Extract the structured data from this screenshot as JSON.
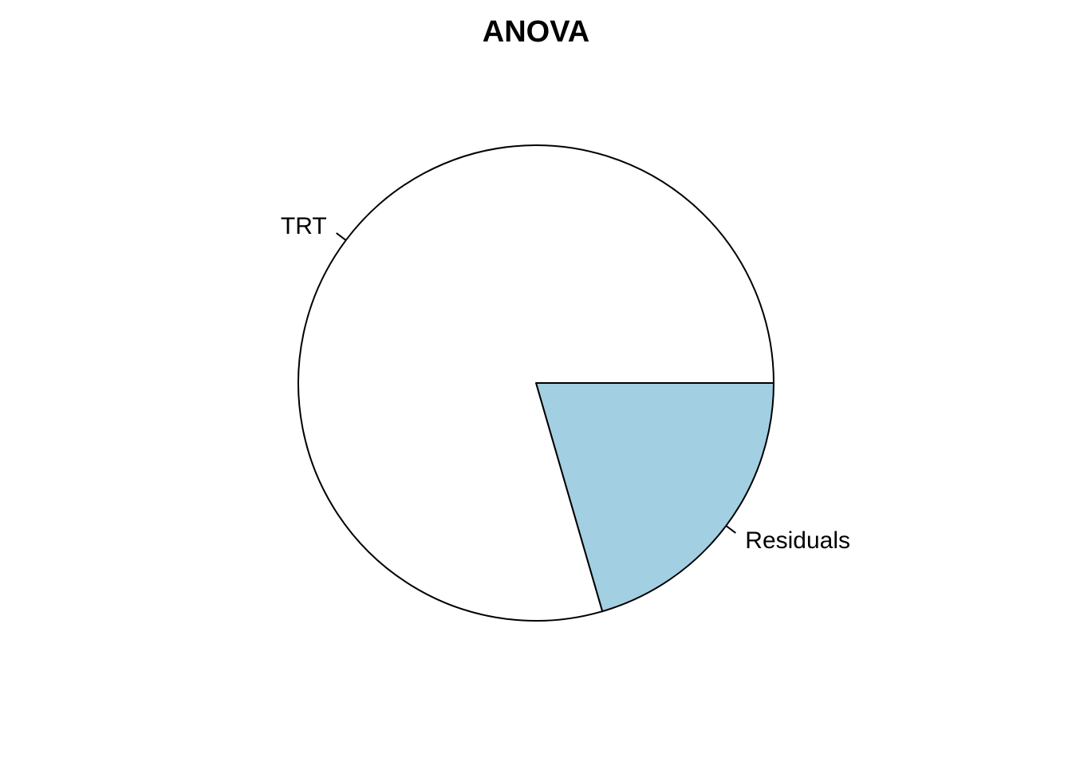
{
  "chart_data": {
    "type": "pie",
    "title": "ANOVA",
    "slices": [
      {
        "label": "Residuals",
        "value": 0.205,
        "color": "#a2cfe1"
      },
      {
        "label": "TRT",
        "value": 0.795,
        "color": "#ffffff"
      }
    ],
    "start_angle_deg": 0,
    "direction": "clockwise"
  }
}
